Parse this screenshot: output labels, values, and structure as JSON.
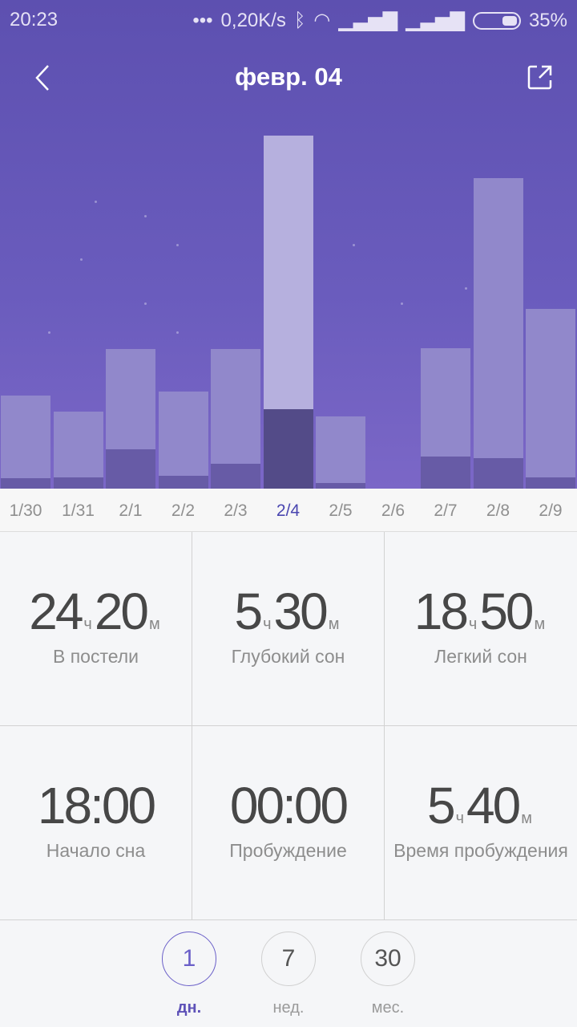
{
  "status_bar": {
    "time": "20:23",
    "net_speed": "0,20K/s",
    "battery": "35%",
    "icons": [
      "dots-icon",
      "bluetooth-icon",
      "wifi-icon",
      "signal-icon",
      "signal-icon",
      "battery-icon"
    ]
  },
  "header": {
    "title": "февр. 04",
    "back_icon": "chevron-left-icon",
    "share_icon": "share-icon"
  },
  "chart_data": {
    "type": "bar",
    "stacked": true,
    "categories": [
      "1/30",
      "1/31",
      "2/1",
      "2/2",
      "2/3",
      "2/4",
      "2/5",
      "2/6",
      "2/7",
      "2/8",
      "2/9"
    ],
    "selected": "2/4",
    "series": [
      {
        "values_hours_total": [
          6.4,
          5.3,
          9.6,
          6.7,
          9.6,
          24.33,
          5.0,
          0,
          9.7,
          21.4,
          12.4
        ]
      },
      {
        "values_hours_deep": [
          0.7,
          0.8,
          2.7,
          0.9,
          1.7,
          5.5,
          0.4,
          0,
          2.2,
          2.1,
          0.8
        ]
      }
    ],
    "ylim": [
      0,
      26.5
    ],
    "colors": {
      "bar": "#9188cb",
      "bar_selected": "#b6b0de",
      "deep": "#675ba6",
      "deep_selected": "#534b88"
    }
  },
  "stats": [
    {
      "h": "24",
      "m": "20",
      "hu": "ч",
      "mu": "м",
      "label": "В постели"
    },
    {
      "h": "5",
      "m": "30",
      "hu": "ч",
      "mu": "м",
      "label": "Глубокий сон"
    },
    {
      "h": "18",
      "m": "50",
      "hu": "ч",
      "mu": "м",
      "label": "Легкий сон"
    },
    {
      "value": "18:00",
      "label": "Начало сна"
    },
    {
      "value": "00:00",
      "label": "Пробуждение"
    },
    {
      "h": "5",
      "m": "40",
      "hu": "ч",
      "mu": "м",
      "label": "Время пробуждения"
    }
  ],
  "periods": [
    {
      "num": "1",
      "label": "дн.",
      "selected": true
    },
    {
      "num": "7",
      "label": "нед."
    },
    {
      "num": "30",
      "label": "мес."
    }
  ]
}
